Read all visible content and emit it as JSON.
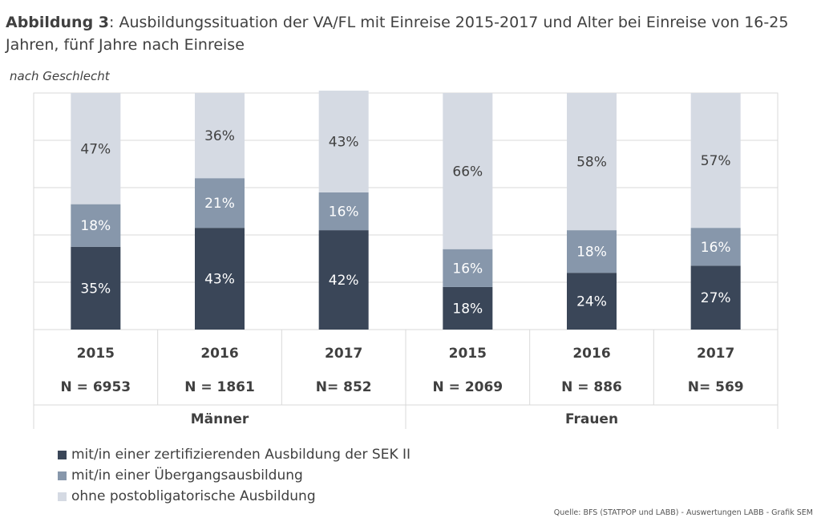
{
  "title": {
    "bold": "Abbildung 3",
    "rest": ": Ausbildungssituation der VA/FL mit Einreise 2015-2017 und Alter bei Einreise von 16-25 Jahren, fünf Jahre nach Einreise"
  },
  "subtitle": "nach Geschlecht",
  "source": "Quelle: BFS (STATPOP und LABB) - Auswertungen LABB - Grafik SEM",
  "chart_data": {
    "type": "bar",
    "stacked": true,
    "percent": true,
    "ylim": [
      0,
      100
    ],
    "grid": true,
    "categories": [
      "2015",
      "2016",
      "2017",
      "2015",
      "2016",
      "2017"
    ],
    "n_labels": [
      "N = 6953",
      "N = 1861",
      "N= 852",
      "N = 2069",
      "N = 886",
      "N= 569"
    ],
    "groups": [
      {
        "name": "Männer",
        "span": 3
      },
      {
        "name": "Frauen",
        "span": 3
      }
    ],
    "series": [
      {
        "name": "mit/in einer zertifizierenden Ausbildung der SEK II",
        "color": "#3a4658",
        "label_color": "#ffffff",
        "values": [
          35,
          43,
          42,
          18,
          24,
          27
        ]
      },
      {
        "name": "mit/in einer Übergangsausbildung",
        "color": "#8797ab",
        "label_color": "#ffffff",
        "values": [
          18,
          21,
          16,
          16,
          18,
          16
        ]
      },
      {
        "name": "ohne postobligatorische Ausbildung",
        "color": "#d5dae3",
        "label_color": "#404040",
        "values": [
          47,
          36,
          43,
          66,
          58,
          57
        ]
      }
    ],
    "legend_position": "bottom-left"
  }
}
